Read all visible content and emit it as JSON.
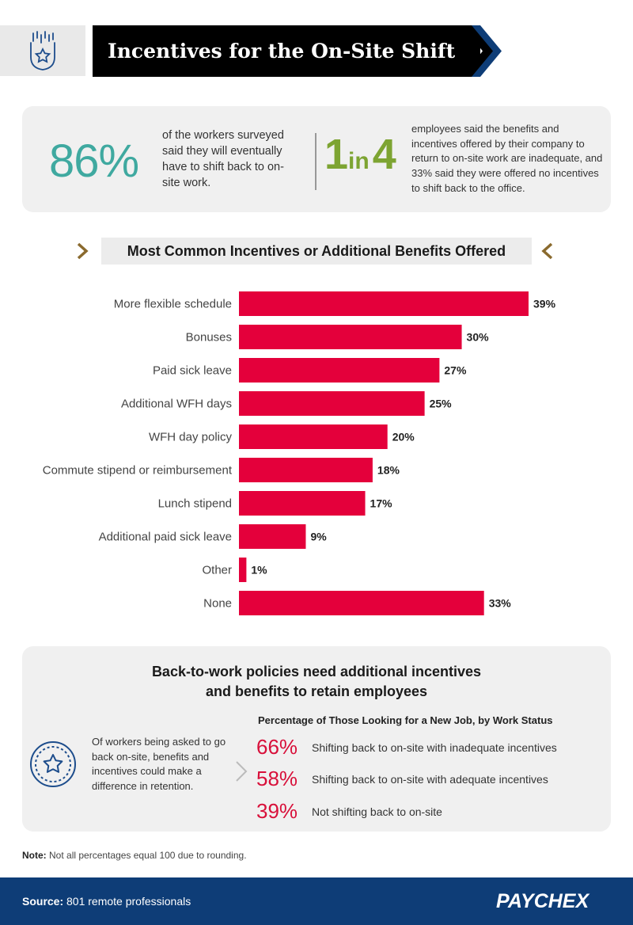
{
  "header": {
    "title": "Incentives for the On-Site Shift",
    "icon": "star-badge-icon"
  },
  "stats": {
    "stat1_value": "86%",
    "stat1_text": "of the workers surveyed said they will eventually have to shift back to on-site work.",
    "stat2_num": "1",
    "stat2_in": "in",
    "stat2_den": "4",
    "stat2_text": "employees said the benefits and incentives offered by their company to return to on-site work are inadequate, and 33% said they were offered no incentives to shift back to the office."
  },
  "chart_title": "Most Common Incentives or Additional Benefits Offered",
  "chart_data": {
    "type": "bar",
    "orientation": "horizontal",
    "categories": [
      "More flexible schedule",
      "Bonuses",
      "Paid sick leave",
      "Additional WFH days",
      "WFH day policy",
      "Commute stipend or reimbursement",
      "Lunch stipend",
      "Additional paid sick leave",
      "Other",
      "None"
    ],
    "values": [
      39,
      30,
      27,
      25,
      20,
      18,
      17,
      9,
      1,
      33
    ],
    "value_labels": [
      "39%",
      "30%",
      "27%",
      "25%",
      "20%",
      "18%",
      "17%",
      "9%",
      "1%",
      "33%"
    ],
    "unit": "%",
    "xlim": [
      0,
      39
    ],
    "grid": false,
    "bar_color": "#e4003b"
  },
  "retention": {
    "heading_line1": "Back-to-work policies need additional incentives",
    "heading_line2": "and benefits to retain employees",
    "description": "Of workers being asked to go back on-site, benefits and incentives could make a difference in retention.",
    "subheading": "Percentage of Those Looking for a New Job, by Work Status",
    "rows": [
      {
        "pct": "66%",
        "label": "Shifting back to on-site with inadequate incentives"
      },
      {
        "pct": "58%",
        "label": "Shifting back to on-site with adequate incentives"
      },
      {
        "pct": "39%",
        "label": "Not shifting back to on-site"
      }
    ]
  },
  "note": {
    "label": "Note:",
    "text": "Not all percentages equal 100 due to rounding."
  },
  "footer": {
    "source_label": "Source:",
    "source_text": "801 remote professionals",
    "logo": "PAYCHEX"
  },
  "colors": {
    "teal": "#3fa9a0",
    "green": "#7da432",
    "red": "#e4003b",
    "navy": "#0e3d77",
    "gold": "#8a6a2e"
  }
}
